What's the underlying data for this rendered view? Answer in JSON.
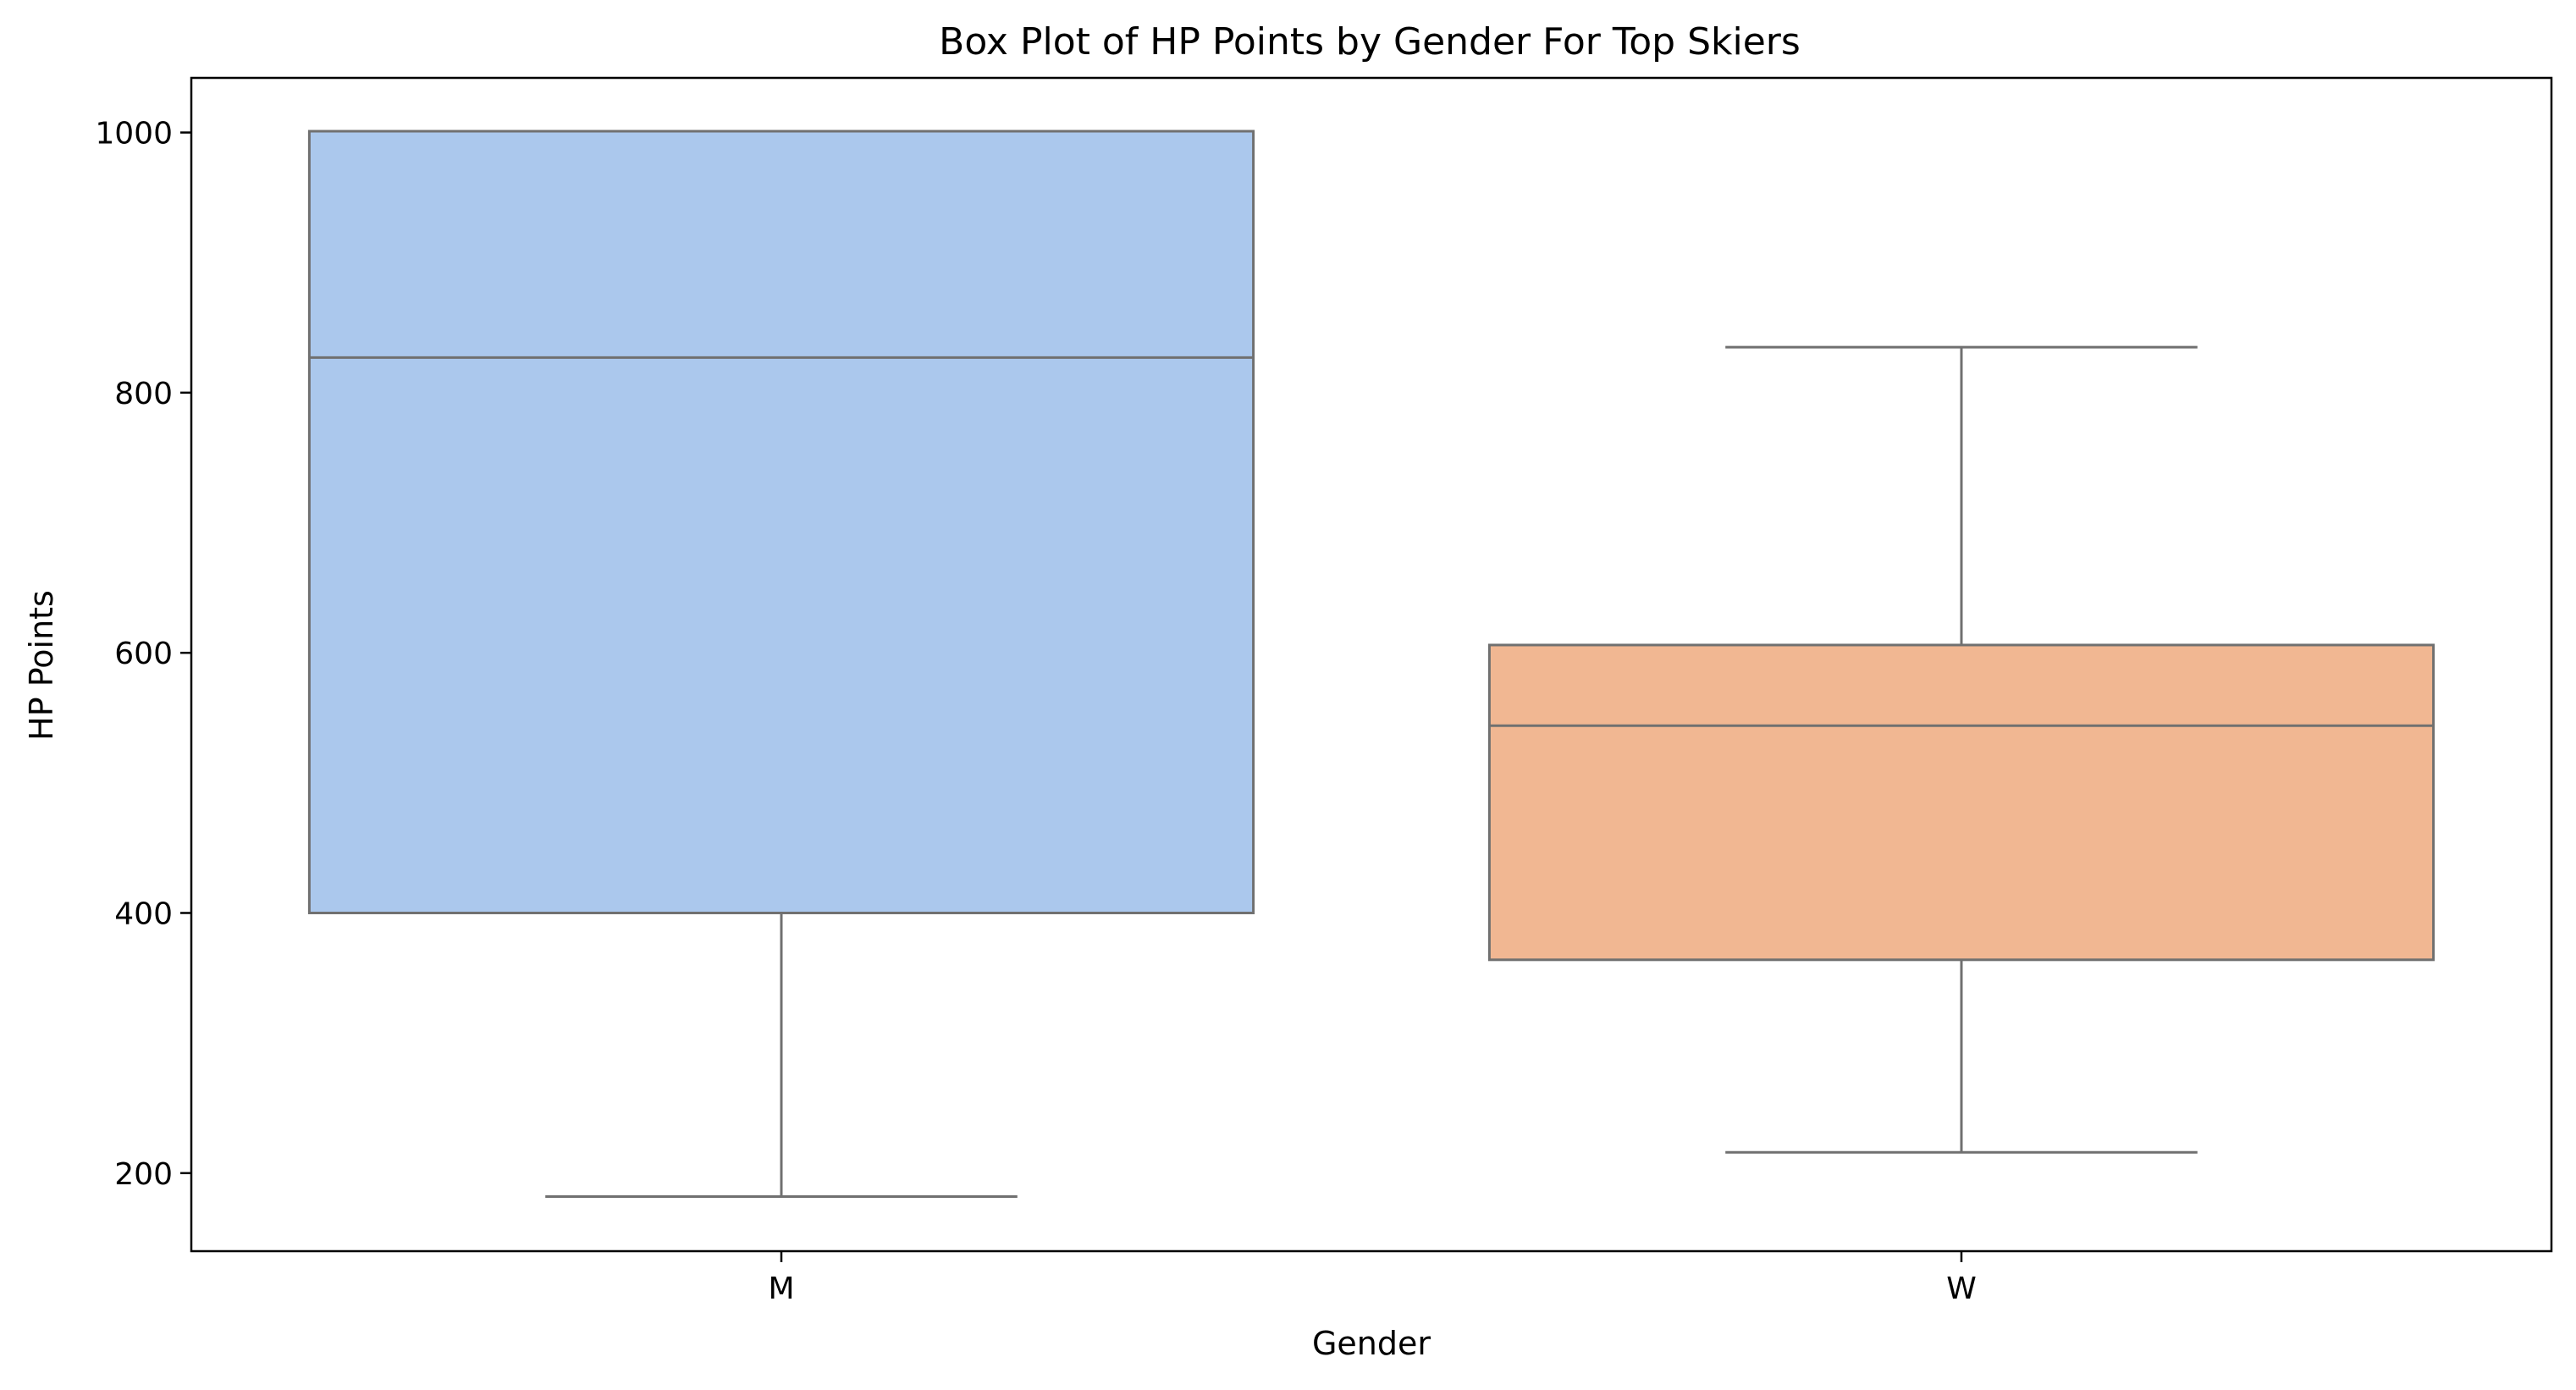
{
  "chart_data": {
    "type": "box",
    "title": "Box Plot of HP Points by Gender For Top Skiers",
    "xlabel": "Gender",
    "ylabel": "HP Points",
    "ylim": [
      140,
      1042
    ],
    "yticks": [
      "200",
      "400",
      "600",
      "800",
      "1000"
    ],
    "grid": false,
    "legend": "none",
    "categories": [
      "M",
      "W"
    ],
    "boxes": [
      {
        "category": "M",
        "whisker_low": 182,
        "q1": 400,
        "median": 827,
        "q3": 1001,
        "whisker_high": 1001,
        "color": "#abc8ed"
      },
      {
        "category": "W",
        "whisker_low": 216,
        "q1": 364,
        "median": 544,
        "q3": 606,
        "whisker_high": 835,
        "color": "#f1b792"
      }
    ],
    "line_color": "#707070"
  }
}
